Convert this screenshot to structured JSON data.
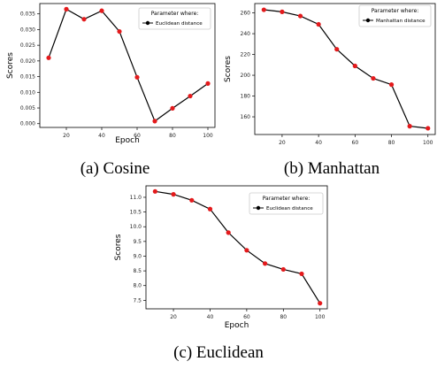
{
  "chart_data": [
    {
      "type": "line",
      "caption": "(a) Cosine",
      "xlabel": "Epoch",
      "ylabel": "Scores",
      "legend": {
        "title": "Parameter where:",
        "entry": "Euclidean distance",
        "placement": "top-right"
      },
      "x": [
        10,
        20,
        30,
        40,
        50,
        60,
        70,
        80,
        90,
        100
      ],
      "values": [
        0.021,
        0.0365,
        0.0333,
        0.036,
        0.0294,
        0.0148,
        0.0008,
        0.0049,
        0.0088,
        0.0128
      ],
      "xticks": [
        "20",
        "40",
        "60",
        "80",
        "100"
      ],
      "xtick_values": [
        20,
        40,
        60,
        80,
        100
      ],
      "yticks": [
        "0.000",
        "0.005",
        "0.010",
        "0.015",
        "0.020",
        "0.025",
        "0.030",
        "0.035"
      ],
      "ytick_values": [
        0,
        0.005,
        0.01,
        0.015,
        0.02,
        0.025,
        0.03,
        0.035
      ],
      "xlim": [
        5,
        104
      ],
      "ylim": [
        -0.0012,
        0.0383
      ],
      "line_color": "#000000",
      "marker_color": "#e41a1c"
    },
    {
      "type": "line",
      "caption": "(b) Manhattan",
      "xlabel": "",
      "ylabel": "Scores",
      "legend": {
        "title": "Parameter where:",
        "entry": "Manhattan distance",
        "placement": "top-right"
      },
      "x": [
        10,
        20,
        30,
        40,
        50,
        60,
        70,
        80,
        90,
        100
      ],
      "values": [
        263,
        261,
        257,
        249,
        225,
        209,
        197,
        191,
        151,
        149
      ],
      "xticks": [
        "20",
        "40",
        "60",
        "80",
        "100"
      ],
      "xtick_values": [
        20,
        40,
        60,
        80,
        100
      ],
      "yticks": [
        "160",
        "180",
        "200",
        "220",
        "240",
        "260"
      ],
      "ytick_values": [
        160,
        180,
        200,
        220,
        240,
        260
      ],
      "xlim": [
        5,
        104
      ],
      "ylim": [
        143,
        269
      ],
      "line_color": "#000000",
      "marker_color": "#e41a1c"
    },
    {
      "type": "line",
      "caption": "(c) Euclidean",
      "xlabel": "Epoch",
      "ylabel": "Scores",
      "legend": {
        "title": "Parameter where:",
        "entry": "Euclidean distance",
        "placement": "top-right"
      },
      "x": [
        10,
        20,
        30,
        40,
        50,
        60,
        70,
        80,
        90,
        100
      ],
      "values": [
        11.2,
        11.1,
        10.9,
        10.6,
        9.8,
        9.2,
        8.75,
        8.55,
        8.4,
        7.4
      ],
      "xticks": [
        "20",
        "40",
        "60",
        "80",
        "100"
      ],
      "xtick_values": [
        20,
        40,
        60,
        80,
        100
      ],
      "yticks": [
        "7.5",
        "8.0",
        "8.5",
        "9.0",
        "9.5",
        "10.0",
        "10.5",
        "11.0"
      ],
      "ytick_values": [
        7.5,
        8.0,
        8.5,
        9.0,
        9.5,
        10.0,
        10.5,
        11.0
      ],
      "xlim": [
        5,
        104
      ],
      "ylim": [
        7.21,
        11.39
      ],
      "line_color": "#000000",
      "marker_color": "#e41a1c"
    }
  ]
}
